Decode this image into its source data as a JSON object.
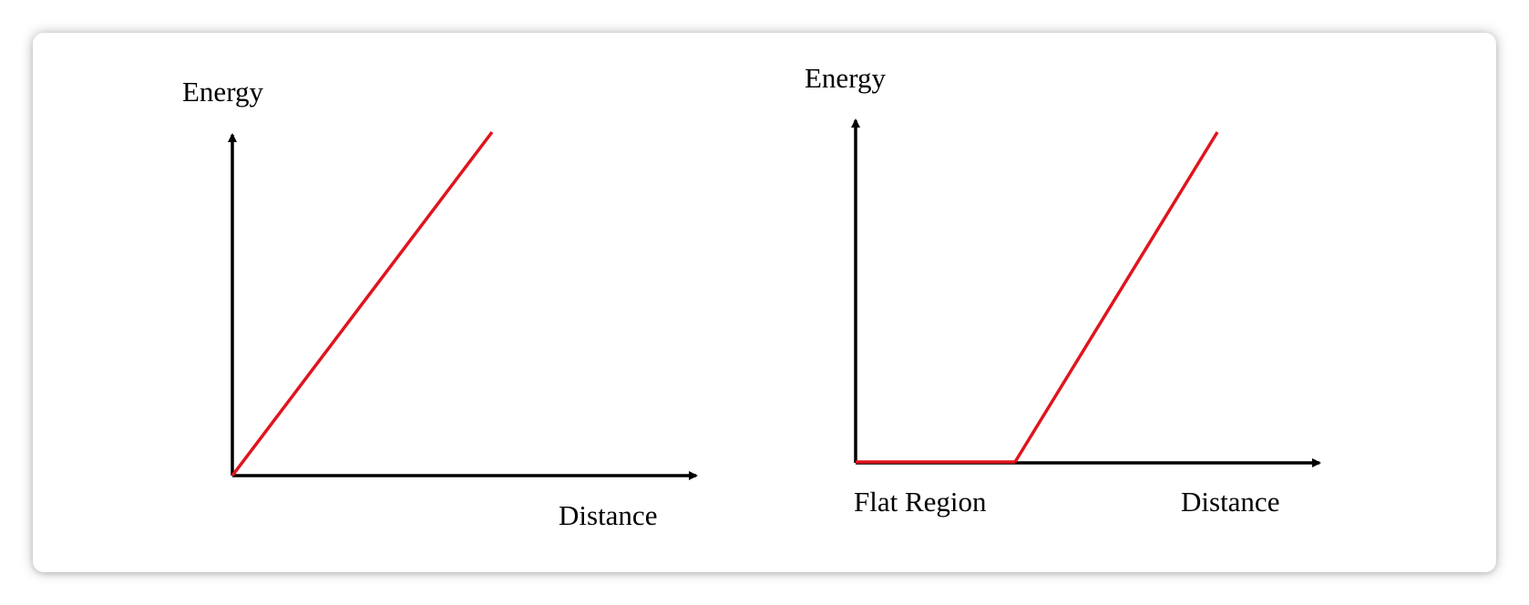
{
  "colors": {
    "axis": "#000000",
    "curve": "#e0141e",
    "background": "#ffffff"
  },
  "left_plot": {
    "y_label": "Energy",
    "x_label": "Distance"
  },
  "right_plot": {
    "y_label": "Energy",
    "x_label": "Distance",
    "flat_label": "Flat Region"
  }
}
